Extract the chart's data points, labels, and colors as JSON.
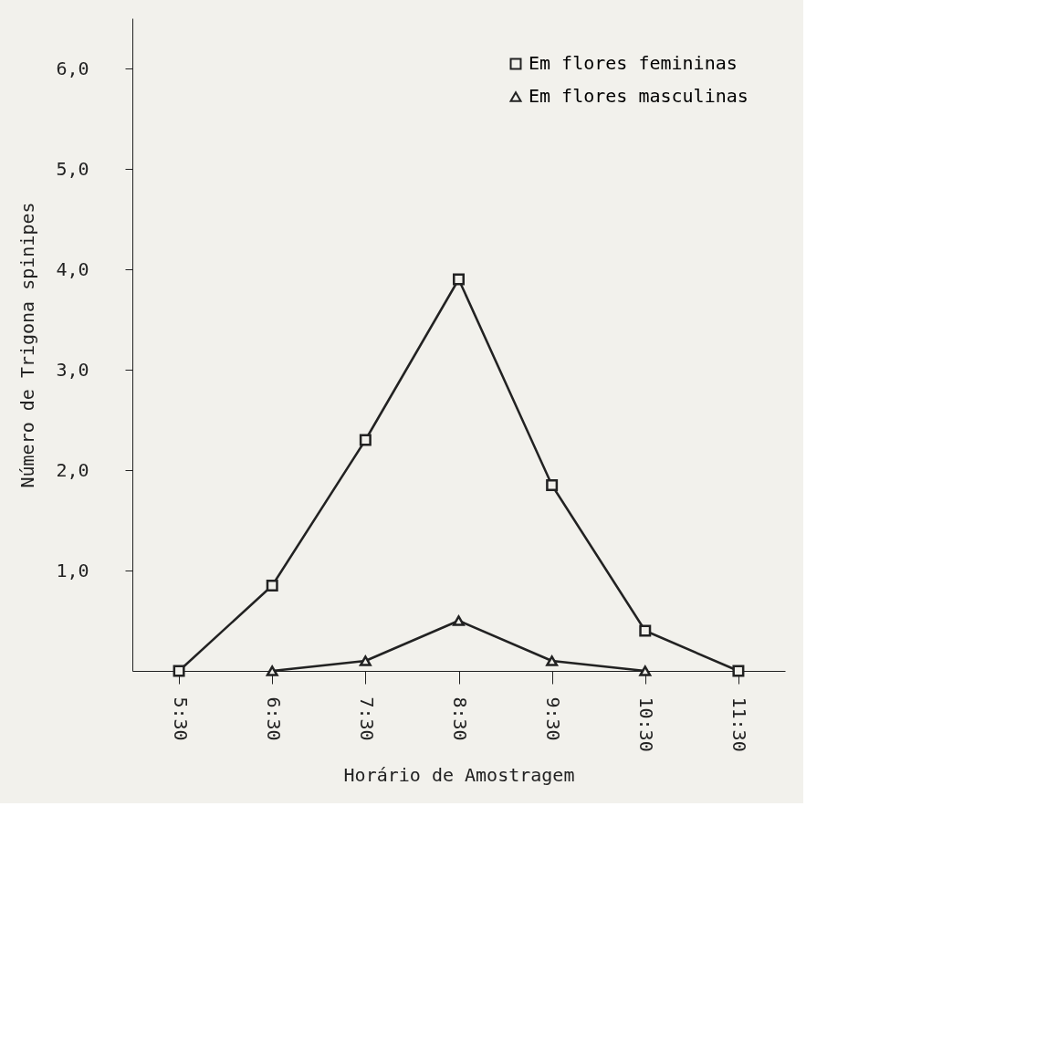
{
  "chart_data": {
    "type": "line",
    "xlabel": "Horário de Amostragem",
    "ylabel": "Número de Trigona spinipes",
    "categories": [
      "5:30",
      "6:30",
      "7:30",
      "8:30",
      "9:30",
      "10:30",
      "11:30"
    ],
    "ylim": [
      0,
      6.5
    ],
    "yticks": [
      {
        "value": 1,
        "label": "1,0"
      },
      {
        "value": 2,
        "label": "2,0"
      },
      {
        "value": 3,
        "label": "3,0"
      },
      {
        "value": 4,
        "label": "4,0"
      },
      {
        "value": 5,
        "label": "5,0"
      },
      {
        "value": 6,
        "label": "6,0"
      }
    ],
    "series": [
      {
        "name": "Em flores femininas",
        "color": "#222222",
        "marker": "square",
        "values": [
          0,
          0.85,
          2.3,
          3.9,
          1.85,
          0.4,
          0
        ]
      },
      {
        "name": "Em flores masculinas",
        "color": "#222222",
        "marker": "triangle",
        "values": [
          null,
          0,
          0.1,
          0.5,
          0.1,
          0,
          null
        ]
      }
    ],
    "legend": "top right",
    "grid": false,
    "line_style": "solid"
  }
}
